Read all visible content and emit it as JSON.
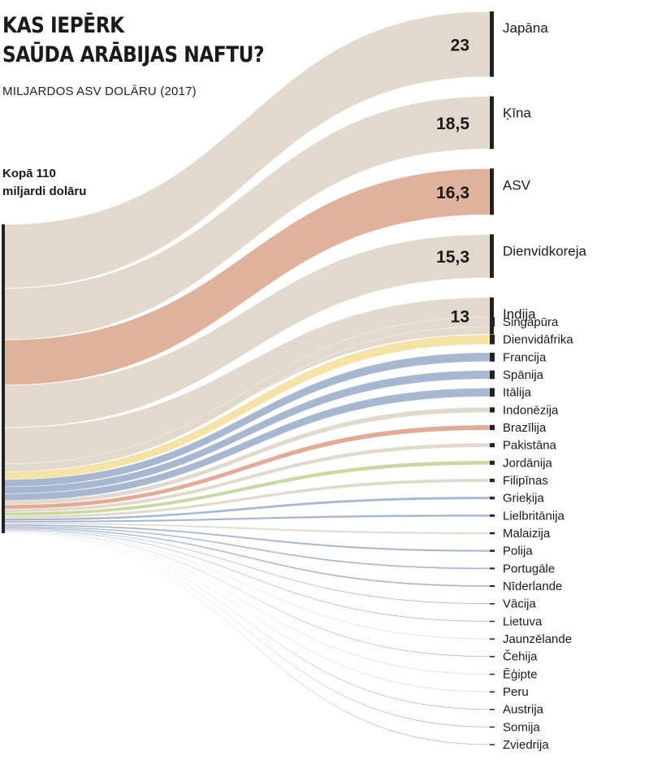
{
  "header": {
    "title_line1": "KAS IEPĒRK",
    "title_line2": "SAŪDA ARĀBIJAS NAFTU?",
    "subtitle": "MILJARDOS ASV DOLĀRU (2017)"
  },
  "total": {
    "line1": "Kopā 110",
    "line2": "miljardi dolāru"
  },
  "colors": {
    "default_flow": "#e2d9cd",
    "highlight_usa": "#e0b29b",
    "yellow": "#f5e2a5",
    "blue": "#a7b7cf",
    "orange": "#e3ab96",
    "green": "#c9d89e",
    "source_bar": "#222222"
  },
  "chart_data": {
    "type": "sankey",
    "title": "KAS IEPĒRK SAŪDA ARĀBIJAS NAFTU?",
    "subtitle": "MILJARDOS ASV DOLĀRU (2017)",
    "source": {
      "label": "Kopā 110 miljardi dolāru",
      "value": 110
    },
    "unit": "miljardi ASV dolāru",
    "targets": [
      {
        "name": "Japāna",
        "value": 23,
        "value_label": "23",
        "color": "default"
      },
      {
        "name": "Ķīna",
        "value": 18.5,
        "value_label": "18,5",
        "color": "default"
      },
      {
        "name": "ASV",
        "value": 16.3,
        "value_label": "16,3",
        "color": "highlight_usa"
      },
      {
        "name": "Dienvidkoreja",
        "value": 15.3,
        "value_label": "15,3",
        "color": "default"
      },
      {
        "name": "Indija",
        "value": 13,
        "value_label": "13",
        "color": "default"
      },
      {
        "name": "Singapūra",
        "value": 2.8,
        "color": "default"
      },
      {
        "name": "Dienvidāfrika",
        "value": 2.8,
        "color": "yellow"
      },
      {
        "name": "Francija",
        "value": 2.6,
        "color": "blue"
      },
      {
        "name": "Spānija",
        "value": 2.5,
        "color": "blue"
      },
      {
        "name": "Itālija",
        "value": 2.5,
        "color": "blue"
      },
      {
        "name": "Indonēzija",
        "value": 1.5,
        "color": "default"
      },
      {
        "name": "Brazīlija",
        "value": 1.5,
        "color": "orange"
      },
      {
        "name": "Pakistāna",
        "value": 1.2,
        "color": "default"
      },
      {
        "name": "Jordānija",
        "value": 1.2,
        "color": "green"
      },
      {
        "name": "Filipīnas",
        "value": 1.0,
        "color": "default"
      },
      {
        "name": "Grieķija",
        "value": 0.8,
        "color": "blue"
      },
      {
        "name": "Lielbritānija",
        "value": 0.7,
        "color": "blue"
      },
      {
        "name": "Malaizija",
        "value": 0.6,
        "color": "default"
      },
      {
        "name": "Polija",
        "value": 0.6,
        "color": "blue"
      },
      {
        "name": "Portugāle",
        "value": 0.5,
        "color": "blue"
      },
      {
        "name": "Nīderlande",
        "value": 0.5,
        "color": "blue"
      },
      {
        "name": "Vācija",
        "value": 0.3,
        "color": "blue"
      },
      {
        "name": "Lietuva",
        "value": 0.3,
        "color": "blue"
      },
      {
        "name": "Jaunzēlande",
        "value": 0.2,
        "color": "default"
      },
      {
        "name": "Čehija",
        "value": 0.2,
        "color": "blue"
      },
      {
        "name": "Ēģipte",
        "value": 0.15,
        "color": "default"
      },
      {
        "name": "Peru",
        "value": 0.15,
        "color": "default"
      },
      {
        "name": "Austrija",
        "value": 0.1,
        "color": "blue"
      },
      {
        "name": "Somija",
        "value": 0.1,
        "color": "blue"
      },
      {
        "name": "Zviedrija",
        "value": 0.1,
        "color": "blue"
      }
    ]
  }
}
